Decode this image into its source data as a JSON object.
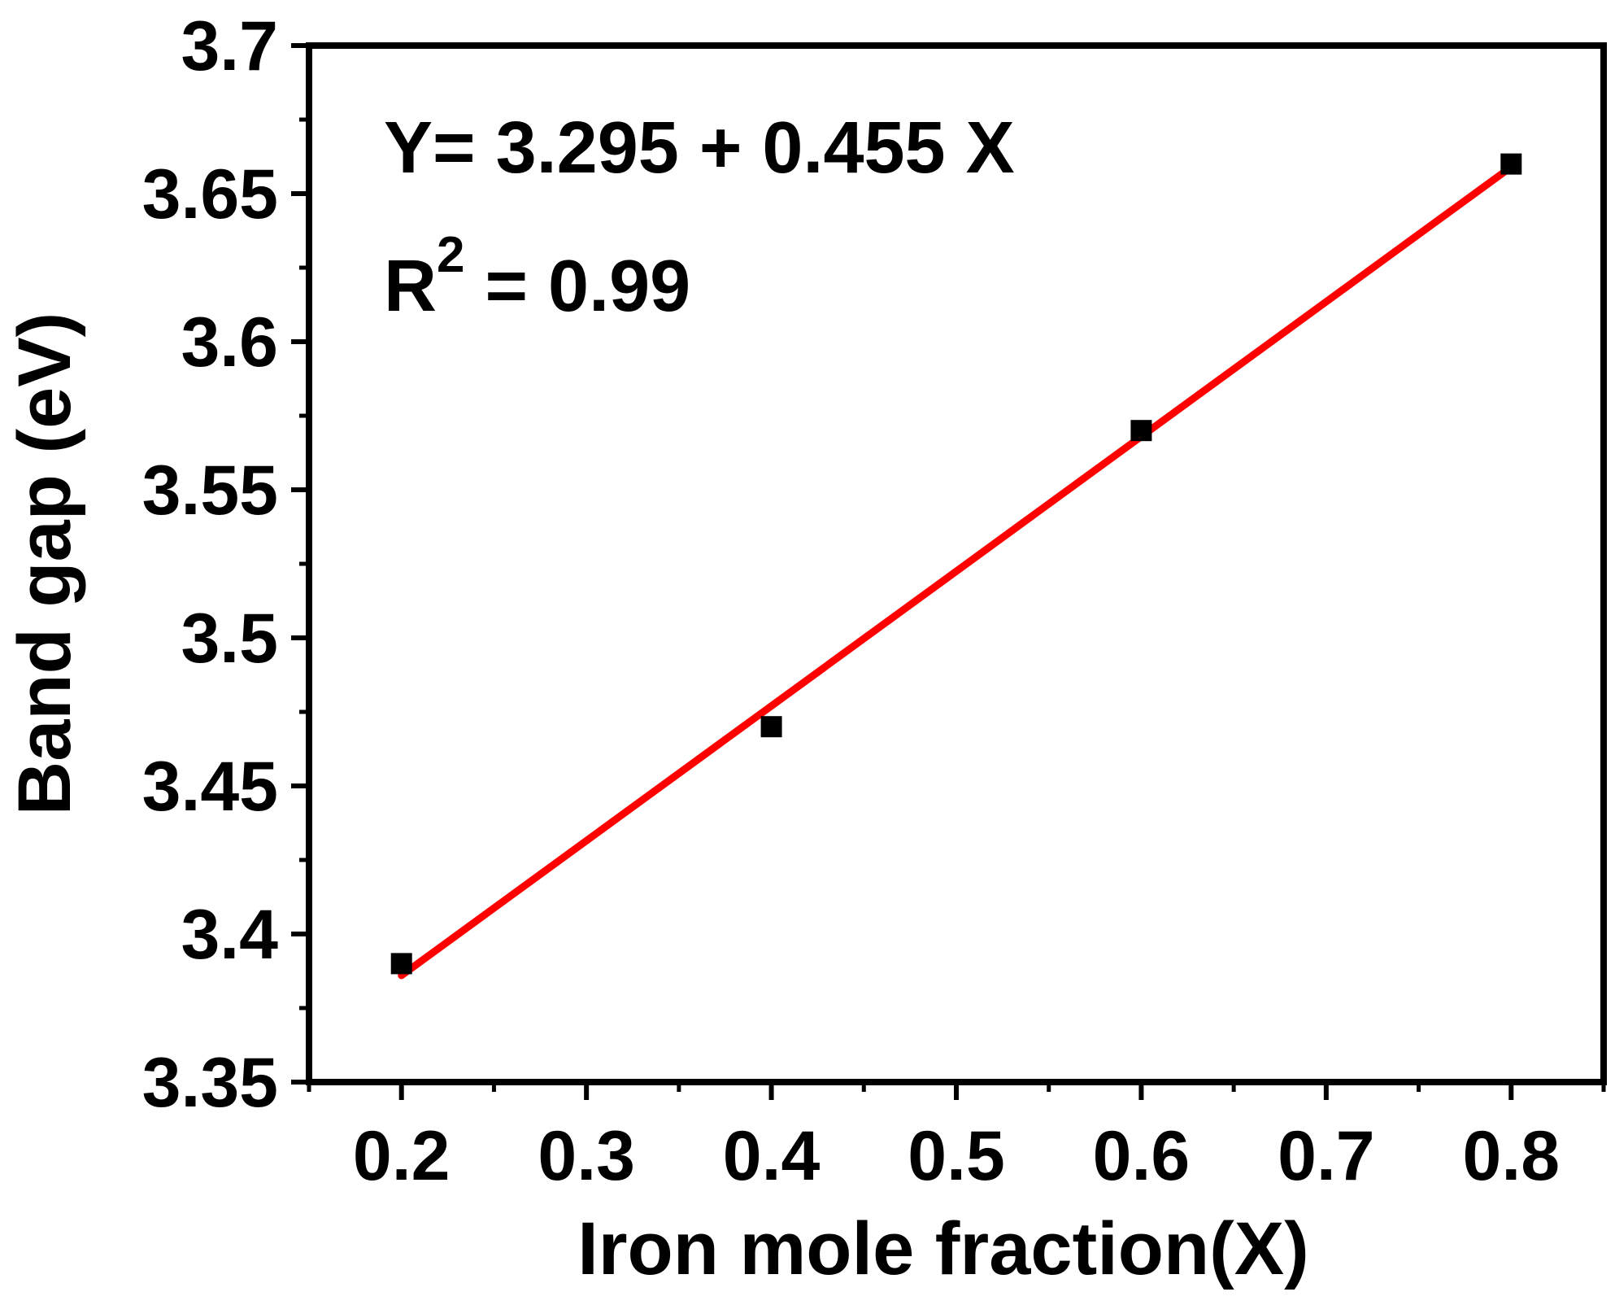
{
  "chart_data": {
    "type": "scatter",
    "xlabel": "Iron mole fraction(X)",
    "ylabel": "Band gap (eV)",
    "xlim": [
      0.15,
      0.85
    ],
    "ylim": [
      3.35,
      3.7
    ],
    "x_ticks": [
      0.2,
      0.3,
      0.4,
      0.5,
      0.6,
      0.7,
      0.8
    ],
    "x_tick_labels": [
      "0.2",
      "0.3",
      "0.4",
      "0.5",
      "0.6",
      "0.7",
      "0.8"
    ],
    "y_ticks": [
      3.35,
      3.4,
      3.45,
      3.5,
      3.55,
      3.6,
      3.65,
      3.7
    ],
    "y_tick_labels": [
      "3.35",
      "3.4",
      "3.45",
      "3.5",
      "3.55",
      "3.6",
      "3.65",
      "3.7"
    ],
    "series": [
      {
        "marker": "square",
        "color": "#000000",
        "points": [
          {
            "x": 0.2,
            "y": 3.39
          },
          {
            "x": 0.4,
            "y": 3.47
          },
          {
            "x": 0.6,
            "y": 3.57
          },
          {
            "x": 0.8,
            "y": 3.66
          }
        ]
      }
    ],
    "fit_line": {
      "color": "#ff0000",
      "intercept": 3.295,
      "slope": 0.455,
      "x_range": [
        0.2,
        0.8
      ]
    },
    "annotations": {
      "equation": "Y= 3.295 + 0.455 X",
      "r2_prefix": "R",
      "r2_exponent": "2",
      "r2_value": " = 0.99"
    },
    "grid": false,
    "legend": "none"
  }
}
